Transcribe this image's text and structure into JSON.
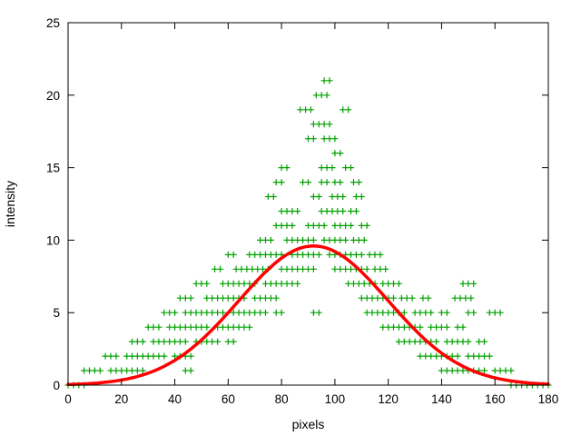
{
  "chart_data": {
    "type": "scatter",
    "title": "",
    "xlabel": "pixels",
    "ylabel": "intensity",
    "xlim": [
      0,
      180
    ],
    "ylim": [
      0,
      25
    ],
    "x_ticks": [
      0,
      20,
      40,
      60,
      80,
      100,
      120,
      140,
      160,
      180
    ],
    "y_ticks": [
      0,
      5,
      10,
      15,
      20,
      25
    ],
    "grid": false,
    "legend": "none",
    "background_color": "#ffffff",
    "border_color": "#000000",
    "marker": {
      "symbol": "plus",
      "color": "#00a000",
      "size": 7
    },
    "scatter_step": 2,
    "scatter_rows": [
      {
        "y": 0,
        "segments": [
          [
            0,
            6
          ],
          [
            166,
            180
          ]
        ]
      },
      {
        "y": 1,
        "segments": [
          [
            6,
            12
          ],
          [
            16,
            28
          ],
          [
            44,
            46
          ],
          [
            140,
            156
          ],
          [
            160,
            166
          ]
        ]
      },
      {
        "y": 2,
        "segments": [
          [
            14,
            18
          ],
          [
            22,
            36
          ],
          [
            40,
            46
          ],
          [
            132,
            146
          ],
          [
            150,
            158
          ]
        ]
      },
      {
        "y": 3,
        "segments": [
          [
            24,
            28
          ],
          [
            32,
            44
          ],
          [
            48,
            56
          ],
          [
            60,
            62
          ],
          [
            124,
            138
          ],
          [
            142,
            150
          ],
          [
            154,
            156
          ]
        ]
      },
      {
        "y": 4,
        "segments": [
          [
            30,
            34
          ],
          [
            38,
            52
          ],
          [
            56,
            68
          ],
          [
            118,
            132
          ],
          [
            136,
            142
          ],
          [
            146,
            149
          ]
        ]
      },
      {
        "y": 5,
        "segments": [
          [
            36,
            40
          ],
          [
            44,
            58
          ],
          [
            62,
            74
          ],
          [
            78,
            81
          ],
          [
            92,
            94
          ],
          [
            112,
            126
          ],
          [
            130,
            136
          ],
          [
            140,
            143
          ],
          [
            150,
            152
          ],
          [
            158,
            163
          ]
        ]
      },
      {
        "y": 6,
        "segments": [
          [
            42,
            47
          ],
          [
            52,
            66
          ],
          [
            70,
            78
          ],
          [
            110,
            122
          ],
          [
            125,
            130
          ],
          [
            133,
            135
          ],
          [
            145,
            151
          ]
        ]
      },
      {
        "y": 7,
        "segments": [
          [
            48,
            53
          ],
          [
            58,
            70
          ],
          [
            74,
            86
          ],
          [
            105,
            115
          ],
          [
            118,
            124
          ],
          [
            148,
            152
          ]
        ]
      },
      {
        "y": 8,
        "segments": [
          [
            55,
            58
          ],
          [
            63,
            75
          ],
          [
            80,
            93
          ],
          [
            100,
            112
          ],
          [
            115,
            120
          ]
        ]
      },
      {
        "y": 9,
        "segments": [
          [
            60,
            62
          ],
          [
            68,
            80
          ],
          [
            84,
            95
          ],
          [
            98,
            110
          ],
          [
            113,
            117
          ]
        ]
      },
      {
        "y": 10,
        "segments": [
          [
            72,
            76
          ],
          [
            82,
            92
          ],
          [
            96,
            104
          ],
          [
            107,
            112
          ]
        ]
      },
      {
        "y": 11,
        "segments": [
          [
            78,
            84
          ],
          [
            90,
            97
          ],
          [
            100,
            106
          ],
          [
            110,
            113
          ]
        ]
      },
      {
        "y": 12,
        "segments": [
          [
            80,
            86
          ],
          [
            95,
            103
          ],
          [
            106,
            109
          ]
        ]
      },
      {
        "y": 13,
        "segments": [
          [
            75,
            77
          ],
          [
            92,
            95
          ],
          [
            99,
            104
          ],
          [
            108,
            111
          ]
        ]
      },
      {
        "y": 14,
        "segments": [
          [
            78,
            81
          ],
          [
            88,
            91
          ],
          [
            95,
            98
          ],
          [
            100,
            103
          ],
          [
            107,
            110
          ]
        ]
      },
      {
        "y": 15,
        "segments": [
          [
            80,
            82
          ],
          [
            95,
            99
          ],
          [
            104,
            107
          ]
        ]
      },
      {
        "y": 16,
        "segments": [
          [
            100,
            103
          ]
        ]
      },
      {
        "y": 17,
        "segments": [
          [
            90,
            93
          ],
          [
            96,
            100
          ]
        ]
      },
      {
        "y": 18,
        "segments": [
          [
            92,
            99
          ]
        ]
      },
      {
        "y": 19,
        "segments": [
          [
            87,
            92
          ],
          [
            103,
            106
          ]
        ]
      },
      {
        "y": 20,
        "segments": [
          [
            93,
            98
          ]
        ]
      },
      {
        "y": 21,
        "segments": [
          [
            96,
            98
          ]
        ]
      }
    ],
    "fit_curve": {
      "type": "gaussian",
      "amplitude": 9.6,
      "mean": 92,
      "sigma": 28,
      "color": "#ff0000",
      "stroke_width": 3.5,
      "sampled_points": [
        [
          0,
          0.04
        ],
        [
          10,
          0.13
        ],
        [
          20,
          0.35
        ],
        [
          30,
          0.83
        ],
        [
          40,
          1.71
        ],
        [
          50,
          3.12
        ],
        [
          60,
          5.0
        ],
        [
          70,
          7.05
        ],
        [
          80,
          8.76
        ],
        [
          90,
          9.58
        ],
        [
          92,
          9.6
        ],
        [
          100,
          9.22
        ],
        [
          110,
          7.81
        ],
        [
          120,
          5.82
        ],
        [
          130,
          3.82
        ],
        [
          140,
          2.21
        ],
        [
          150,
          1.12
        ],
        [
          160,
          0.5
        ],
        [
          170,
          0.2
        ],
        [
          180,
          0.07
        ]
      ]
    }
  }
}
